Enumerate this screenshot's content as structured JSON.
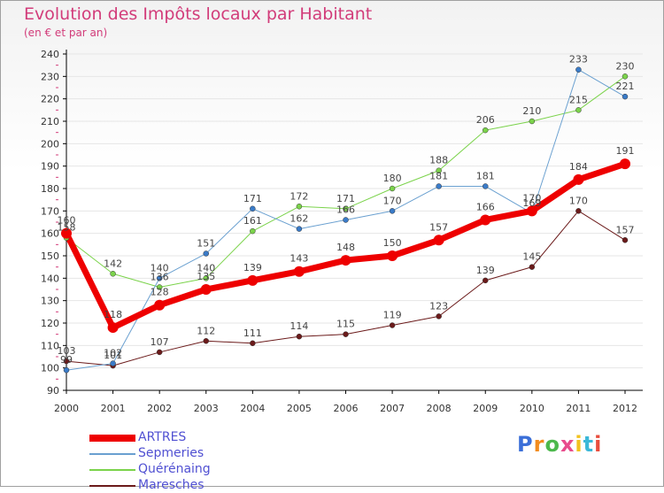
{
  "header": {
    "title": "Evolution des Impôts locaux par Habitant",
    "subtitle": "(en € et par an)"
  },
  "logo": {
    "text": "Proxiti",
    "colors": [
      "#3b6fd8",
      "#f28c1e",
      "#4cb84c",
      "#e84c8c",
      "#f2c21e",
      "#3bb8d8",
      "#e84c3c"
    ]
  },
  "colors": {
    "accent": "#d23c7a",
    "axis": "#000000",
    "grid": "#e6e6e6"
  },
  "chart_data": {
    "type": "line",
    "title": "Evolution des Impôts locaux par Habitant",
    "subtitle": "(en € et par an)",
    "xlabel": "",
    "ylabel": "",
    "categories": [
      "2000",
      "2001",
      "2002",
      "2003",
      "2004",
      "2005",
      "2006",
      "2007",
      "2008",
      "2009",
      "2010",
      "2011",
      "2012"
    ],
    "ylim": [
      90,
      240
    ],
    "yticks": [
      90,
      100,
      110,
      120,
      130,
      140,
      150,
      160,
      170,
      180,
      190,
      200,
      210,
      220,
      230,
      240
    ],
    "grid": "horizontal",
    "legend": "bottom-left",
    "series": [
      {
        "name": "Maresches",
        "color": "#6b1a1a",
        "marker": "#6b1a1a",
        "width": 1,
        "values": [
          103,
          101,
          107,
          112,
          111,
          114,
          115,
          119,
          123,
          139,
          145,
          170,
          157
        ]
      },
      {
        "name": "Quérénaing",
        "color": "#7bd34b",
        "marker": "#7bd34b",
        "width": 1,
        "values": [
          158,
          142,
          136,
          140,
          161,
          172,
          171,
          180,
          188,
          206,
          210,
          215,
          230
        ]
      },
      {
        "name": "Sepmeries",
        "color": "#6aa0d0",
        "marker": "#3a7bc8",
        "width": 1,
        "values": [
          99,
          102,
          140,
          151,
          171,
          162,
          166,
          170,
          181,
          181,
          169,
          233,
          221
        ]
      },
      {
        "name": "ARTRES",
        "color": "#ee0000",
        "marker": "#ee0000",
        "width": 7,
        "values": [
          160,
          118,
          128,
          135,
          139,
          143,
          148,
          150,
          157,
          166,
          170,
          184,
          191
        ]
      }
    ],
    "legend_order": [
      "ARTRES",
      "Sepmeries",
      "Quérénaing",
      "Maresches"
    ]
  }
}
